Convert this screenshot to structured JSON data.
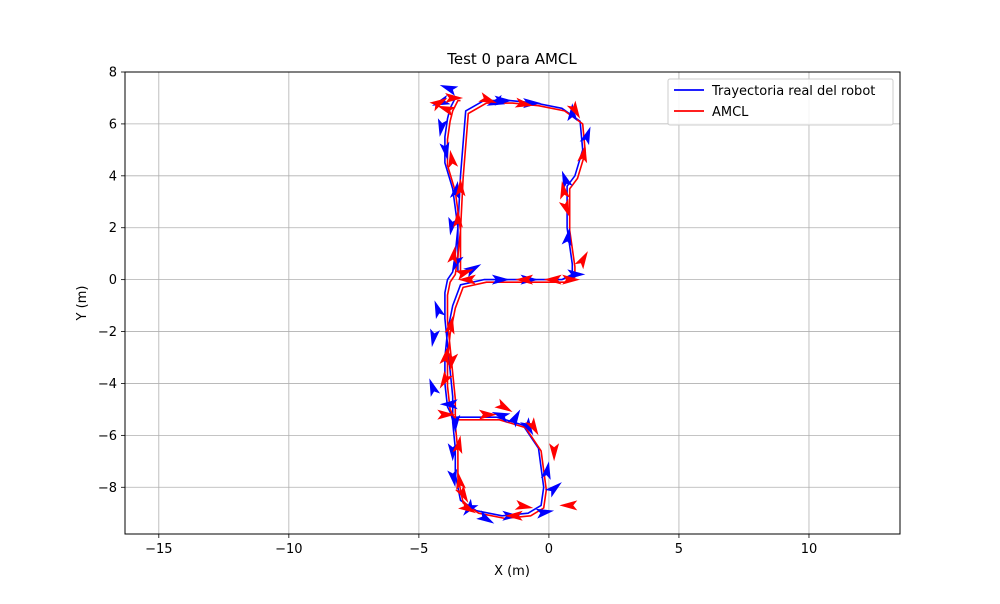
{
  "chart_data": {
    "type": "line",
    "title": "Test 0 para AMCL",
    "xlabel": "X (m)",
    "ylabel": "Y (m)",
    "xlim": [
      -16.3,
      13.5
    ],
    "ylim": [
      -9.8,
      8.0
    ],
    "xticks": [
      -15,
      -10,
      -5,
      0,
      5,
      10
    ],
    "yticks": [
      -8,
      -6,
      -4,
      -2,
      0,
      2,
      4,
      6,
      8
    ],
    "xtick_labels": [
      "−15",
      "−10",
      "−5",
      "0",
      "5",
      "10"
    ],
    "ytick_labels": [
      "−8",
      "−6",
      "−4",
      "−2",
      "0",
      "2",
      "4",
      "6",
      "8"
    ],
    "grid": true,
    "legend": "top-right",
    "series": [
      {
        "name": "Trayectoria real del robot",
        "color": "#0000ff",
        "x": [
          -3.5,
          -3.5,
          -3.4,
          -3.2,
          -2.5,
          -1.5,
          -0.5,
          0.5,
          1.2,
          1.3,
          1.0,
          0.7,
          0.7,
          0.9,
          0.9,
          0.5,
          -0.5,
          -1.5,
          -2.5,
          -3.4,
          -3.7,
          -3.9,
          -4.0,
          -4.0,
          -3.9,
          -3.7,
          -3.0,
          -2.0,
          -1.0,
          -0.4,
          -0.2,
          -0.3,
          -0.8,
          -1.8,
          -2.8,
          -3.4,
          -3.6,
          -3.6,
          -3.7,
          -3.7,
          -3.8,
          -3.9,
          -4.0,
          -4.0,
          -3.9,
          -3.7,
          -3.6,
          -3.5,
          -3.7,
          -4.0,
          -4.0,
          -3.9,
          -3.8,
          -3.6,
          -3.5
        ],
        "y": [
          0.3,
          2.0,
          4.0,
          6.5,
          6.9,
          6.9,
          6.8,
          6.6,
          6.1,
          5.0,
          4.0,
          3.6,
          2.0,
          0.6,
          0.2,
          0.0,
          0.0,
          0.0,
          0.0,
          -0.2,
          -1.0,
          -2.0,
          -3.0,
          -4.0,
          -4.9,
          -5.3,
          -5.3,
          -5.3,
          -5.6,
          -6.5,
          -8.0,
          -8.7,
          -9.0,
          -9.1,
          -8.9,
          -8.5,
          -7.5,
          -6.5,
          -5.5,
          -4.5,
          -3.5,
          -2.5,
          -1.5,
          -0.5,
          0.0,
          0.3,
          1.0,
          2.0,
          3.5,
          4.5,
          5.5,
          6.2,
          6.6,
          7.0,
          7.0
        ]
      },
      {
        "name": "AMCL",
        "color": "#ff0000",
        "x": [
          -3.4,
          -3.4,
          -3.3,
          -3.1,
          -2.4,
          -1.4,
          -0.4,
          0.6,
          1.3,
          1.4,
          1.1,
          0.8,
          0.8,
          1.0,
          1.0,
          0.6,
          -0.4,
          -1.4,
          -2.4,
          -3.3,
          -3.6,
          -3.8,
          -3.9,
          -3.9,
          -3.8,
          -3.6,
          -2.9,
          -1.9,
          -0.9,
          -0.3,
          -0.1,
          -0.2,
          -0.7,
          -1.7,
          -2.7,
          -3.3,
          -3.5,
          -3.5,
          -3.6,
          -3.6,
          -3.7,
          -3.8,
          -3.9,
          -3.9,
          -3.8,
          -3.6,
          -3.5,
          -3.4,
          -3.6,
          -3.9,
          -3.9,
          -3.8,
          -3.7,
          -3.5,
          -3.4
        ],
        "y": [
          0.2,
          1.9,
          3.9,
          6.4,
          6.8,
          6.8,
          6.7,
          6.5,
          6.0,
          4.9,
          3.9,
          3.5,
          1.9,
          0.5,
          0.1,
          -0.1,
          -0.1,
          -0.1,
          -0.1,
          -0.3,
          -1.1,
          -2.1,
          -3.1,
          -4.1,
          -5.0,
          -5.4,
          -5.4,
          -5.4,
          -5.7,
          -6.6,
          -8.1,
          -8.8,
          -9.1,
          -9.2,
          -9.0,
          -8.6,
          -7.6,
          -6.6,
          -5.6,
          -4.6,
          -3.6,
          -2.6,
          -1.6,
          -0.6,
          -0.1,
          0.2,
          0.9,
          1.9,
          3.4,
          4.4,
          5.4,
          6.1,
          6.5,
          6.9,
          6.9
        ]
      }
    ],
    "arrows": [
      {
        "color": "#0000ff",
        "x": -4.2,
        "y": 7.5,
        "angle": 160
      },
      {
        "color": "#0000ff",
        "x": -4.5,
        "y": 6.7,
        "angle": 200
      },
      {
        "color": "#0000ff",
        "x": -4.2,
        "y": 5.5,
        "angle": 260
      },
      {
        "color": "#0000ff",
        "x": -3.9,
        "y": 4.6,
        "angle": 280
      },
      {
        "color": "#0000ff",
        "x": -3.5,
        "y": 3.8,
        "angle": 80
      },
      {
        "color": "#0000ff",
        "x": -3.8,
        "y": 1.7,
        "angle": 260
      },
      {
        "color": "#0000ff",
        "x": -3.7,
        "y": 0.3,
        "angle": 250
      },
      {
        "color": "#0000ff",
        "x": -2.6,
        "y": 0.6,
        "angle": 30
      },
      {
        "color": "#0000ff",
        "x": -1.5,
        "y": 0.0,
        "angle": 0
      },
      {
        "color": "#0000ff",
        "x": -0.4,
        "y": 0.0,
        "angle": 0
      },
      {
        "color": "#0000ff",
        "x": 1.4,
        "y": 0.2,
        "angle": 0
      },
      {
        "color": "#0000ff",
        "x": 0.8,
        "y": 2.0,
        "angle": 80
      },
      {
        "color": "#0000ff",
        "x": 0.5,
        "y": 4.2,
        "angle": 110
      },
      {
        "color": "#0000ff",
        "x": 1.6,
        "y": 5.9,
        "angle": 70
      },
      {
        "color": "#0000ff",
        "x": 0.9,
        "y": 6.8,
        "angle": 90
      },
      {
        "color": "#0000ff",
        "x": -0.3,
        "y": 6.8,
        "angle": 0
      },
      {
        "color": "#0000ff",
        "x": -1.4,
        "y": 6.9,
        "angle": 0
      },
      {
        "color": "#0000ff",
        "x": -2.4,
        "y": 6.7,
        "angle": 200
      },
      {
        "color": "#0000ff",
        "x": -4.4,
        "y": -0.8,
        "angle": 110
      },
      {
        "color": "#0000ff",
        "x": -4.5,
        "y": -2.6,
        "angle": 260
      },
      {
        "color": "#0000ff",
        "x": -4.6,
        "y": -3.8,
        "angle": 110
      },
      {
        "color": "#0000ff",
        "x": -4.2,
        "y": -4.8,
        "angle": 180
      },
      {
        "color": "#0000ff",
        "x": -3.6,
        "y": -5.9,
        "angle": 270
      },
      {
        "color": "#0000ff",
        "x": -3.7,
        "y": -7.0,
        "angle": 270
      },
      {
        "color": "#0000ff",
        "x": -3.6,
        "y": -8.0,
        "angle": 280
      },
      {
        "color": "#0000ff",
        "x": -3.3,
        "y": -9.1,
        "angle": 230
      },
      {
        "color": "#0000ff",
        "x": -2.1,
        "y": -9.4,
        "angle": 330
      },
      {
        "color": "#0000ff",
        "x": -1.1,
        "y": -9.1,
        "angle": 0
      },
      {
        "color": "#0000ff",
        "x": 0.2,
        "y": -8.9,
        "angle": 10
      },
      {
        "color": "#0000ff",
        "x": 0.5,
        "y": -7.8,
        "angle": 40
      },
      {
        "color": "#0000ff",
        "x": 0.0,
        "y": -7.0,
        "angle": 80
      },
      {
        "color": "#0000ff",
        "x": -0.6,
        "y": -6.0,
        "angle": 300
      },
      {
        "color": "#0000ff",
        "x": -1.1,
        "y": -5.0,
        "angle": 60
      },
      {
        "color": "#0000ff",
        "x": -2.2,
        "y": -5.1,
        "angle": 160
      },
      {
        "color": "#ff0000",
        "x": -4.3,
        "y": 6.7,
        "angle": 160
      },
      {
        "color": "#ff0000",
        "x": -3.9,
        "y": 7.0,
        "angle": 30
      },
      {
        "color": "#ff0000",
        "x": -3.3,
        "y": 7.0,
        "angle": 0
      },
      {
        "color": "#ff0000",
        "x": -2.0,
        "y": 6.8,
        "angle": 340
      },
      {
        "color": "#ff0000",
        "x": -0.6,
        "y": 6.7,
        "angle": 350
      },
      {
        "color": "#ff0000",
        "x": 1.2,
        "y": 6.2,
        "angle": 300
      },
      {
        "color": "#ff0000",
        "x": 1.4,
        "y": 5.2,
        "angle": 80
      },
      {
        "color": "#ff0000",
        "x": 0.5,
        "y": 3.8,
        "angle": 100
      },
      {
        "color": "#ff0000",
        "x": 0.8,
        "y": 2.4,
        "angle": 290
      },
      {
        "color": "#ff0000",
        "x": 1.5,
        "y": 1.1,
        "angle": 60
      },
      {
        "color": "#ff0000",
        "x": 1.2,
        "y": 0.0,
        "angle": 0
      },
      {
        "color": "#ff0000",
        "x": -0.2,
        "y": 0.0,
        "angle": 180
      },
      {
        "color": "#ff0000",
        "x": -1.3,
        "y": 0.0,
        "angle": 180
      },
      {
        "color": "#ff0000",
        "x": -2.9,
        "y": 0.4,
        "angle": 20
      },
      {
        "color": "#ff0000",
        "x": -3.5,
        "y": 0.0,
        "angle": 180
      },
      {
        "color": "#ff0000",
        "x": -3.6,
        "y": 1.3,
        "angle": 80
      },
      {
        "color": "#ff0000",
        "x": -3.5,
        "y": 2.7,
        "angle": 90
      },
      {
        "color": "#ff0000",
        "x": -3.4,
        "y": 3.9,
        "angle": 90
      },
      {
        "color": "#ff0000",
        "x": -3.8,
        "y": 5.0,
        "angle": 100
      },
      {
        "color": "#ff0000",
        "x": -3.7,
        "y": -1.4,
        "angle": 80
      },
      {
        "color": "#ff0000",
        "x": -3.9,
        "y": -2.6,
        "angle": 80
      },
      {
        "color": "#ff0000",
        "x": -3.8,
        "y": -3.5,
        "angle": 260
      },
      {
        "color": "#ff0000",
        "x": -4.2,
        "y": -4.2,
        "angle": 240
      },
      {
        "color": "#ff0000",
        "x": -3.6,
        "y": -5.2,
        "angle": 0
      },
      {
        "color": "#ff0000",
        "x": -3.4,
        "y": -6.0,
        "angle": 80
      },
      {
        "color": "#ff0000",
        "x": -3.5,
        "y": -7.4,
        "angle": 100
      },
      {
        "color": "#ff0000",
        "x": -3.1,
        "y": -8.6,
        "angle": 300
      },
      {
        "color": "#ff0000",
        "x": -2.8,
        "y": -9.0,
        "angle": 330
      },
      {
        "color": "#ff0000",
        "x": -1.7,
        "y": -9.1,
        "angle": 180
      },
      {
        "color": "#ff0000",
        "x": -0.6,
        "y": -8.8,
        "angle": 350
      },
      {
        "color": "#ff0000",
        "x": 0.4,
        "y": -8.7,
        "angle": 180
      },
      {
        "color": "#ff0000",
        "x": 0.2,
        "y": -7.0,
        "angle": 270
      },
      {
        "color": "#ff0000",
        "x": -0.4,
        "y": -6.0,
        "angle": 300
      },
      {
        "color": "#ff0000",
        "x": -1.4,
        "y": -5.1,
        "angle": 330
      },
      {
        "color": "#ff0000",
        "x": -2.0,
        "y": -5.2,
        "angle": 0
      }
    ]
  }
}
